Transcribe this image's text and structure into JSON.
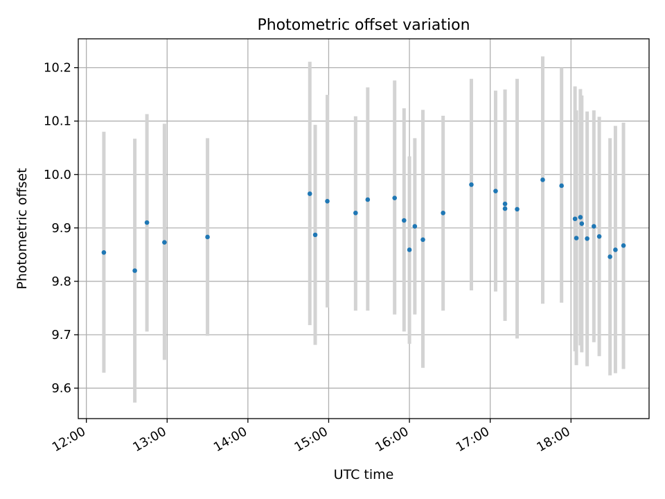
{
  "chart_data": {
    "type": "scatter",
    "title": "Photometric offset variation",
    "xlabel": "UTC time",
    "ylabel": "Photometric offset",
    "xlim": [
      "11:54",
      "18:58"
    ],
    "ylim": [
      9.543,
      10.254
    ],
    "xticks": [
      "12:00",
      "13:00",
      "14:00",
      "15:00",
      "16:00",
      "17:00",
      "18:00"
    ],
    "yticks": [
      9.6,
      9.7,
      9.8,
      9.9,
      10.0,
      10.1,
      10.2
    ],
    "ytick_labels": [
      "9.6",
      "9.7",
      "9.8",
      "9.9",
      "10.0",
      "10.1",
      "10.2"
    ],
    "grid": true,
    "colors": {
      "point": "#1f77b4",
      "errorbar": "#d3d3d3",
      "grid": "#b0b0b0"
    },
    "series": [
      {
        "points": [
          {
            "x": "12:13",
            "y": 9.854,
            "ylo": 9.629,
            "yhi": 10.08
          },
          {
            "x": "12:36",
            "y": 9.82,
            "ylo": 9.573,
            "yhi": 10.067
          },
          {
            "x": "12:45",
            "y": 9.91,
            "ylo": 9.706,
            "yhi": 10.113
          },
          {
            "x": "12:58",
            "y": 9.873,
            "ylo": 9.653,
            "yhi": 10.095
          },
          {
            "x": "13:30",
            "y": 9.883,
            "ylo": 9.698,
            "yhi": 10.068
          },
          {
            "x": "14:46",
            "y": 9.964,
            "ylo": 9.718,
            "yhi": 10.211
          },
          {
            "x": "14:50",
            "y": 9.887,
            "ylo": 9.681,
            "yhi": 10.093
          },
          {
            "x": "14:59",
            "y": 9.95,
            "ylo": 9.751,
            "yhi": 10.149
          },
          {
            "x": "15:20",
            "y": 9.928,
            "ylo": 9.745,
            "yhi": 10.109
          },
          {
            "x": "15:29",
            "y": 9.953,
            "ylo": 9.745,
            "yhi": 10.163
          },
          {
            "x": "15:49",
            "y": 9.956,
            "ylo": 9.738,
            "yhi": 10.176
          },
          {
            "x": "15:56",
            "y": 9.914,
            "ylo": 9.706,
            "yhi": 10.124
          },
          {
            "x": "16:00",
            "y": 9.859,
            "ylo": 9.683,
            "yhi": 10.034
          },
          {
            "x": "16:04",
            "y": 9.903,
            "ylo": 9.738,
            "yhi": 10.068
          },
          {
            "x": "16:10",
            "y": 9.878,
            "ylo": 9.638,
            "yhi": 10.121
          },
          {
            "x": "16:25",
            "y": 9.928,
            "ylo": 9.745,
            "yhi": 10.11
          },
          {
            "x": "16:46",
            "y": 9.981,
            "ylo": 9.783,
            "yhi": 10.179
          },
          {
            "x": "17:04",
            "y": 9.969,
            "ylo": 9.781,
            "yhi": 10.157
          },
          {
            "x": "17:11",
            "y": 9.936,
            "ylo": 9.726,
            "yhi": 10.159
          },
          {
            "x": "17:11",
            "y": 9.945,
            "ylo": 9.732,
            "yhi": 10.159
          },
          {
            "x": "17:20",
            "y": 9.935,
            "ylo": 9.693,
            "yhi": 10.179
          },
          {
            "x": "17:39",
            "y": 9.99,
            "ylo": 9.758,
            "yhi": 10.221
          },
          {
            "x": "17:53",
            "y": 9.979,
            "ylo": 9.76,
            "yhi": 10.2
          },
          {
            "x": "18:03",
            "y": 9.917,
            "ylo": 9.669,
            "yhi": 10.165
          },
          {
            "x": "18:04",
            "y": 9.881,
            "ylo": 9.643,
            "yhi": 10.12
          },
          {
            "x": "18:07",
            "y": 9.92,
            "ylo": 9.68,
            "yhi": 10.16
          },
          {
            "x": "18:08",
            "y": 9.908,
            "ylo": 9.667,
            "yhi": 10.148
          },
          {
            "x": "18:12",
            "y": 9.88,
            "ylo": 9.641,
            "yhi": 10.118
          },
          {
            "x": "18:17",
            "y": 9.903,
            "ylo": 9.686,
            "yhi": 10.12
          },
          {
            "x": "18:21",
            "y": 9.884,
            "ylo": 9.66,
            "yhi": 10.108
          },
          {
            "x": "18:29",
            "y": 9.846,
            "ylo": 9.624,
            "yhi": 10.068
          },
          {
            "x": "18:33",
            "y": 9.859,
            "ylo": 9.628,
            "yhi": 10.091
          },
          {
            "x": "18:39",
            "y": 9.867,
            "ylo": 9.636,
            "yhi": 10.097
          }
        ]
      }
    ]
  }
}
